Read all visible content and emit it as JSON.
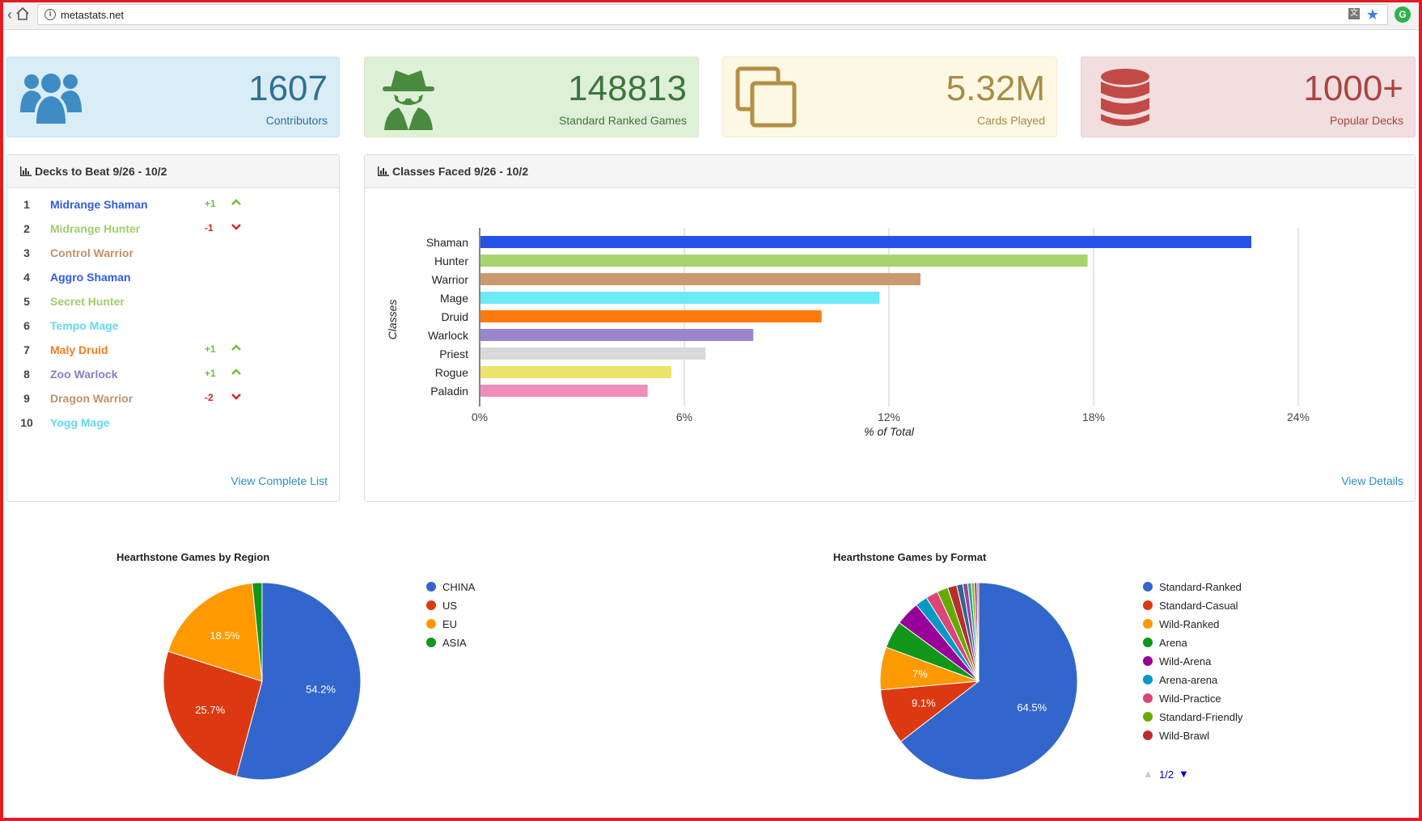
{
  "browser": {
    "url": "metastats.net"
  },
  "stats": [
    {
      "value": "1607",
      "label": "Contributors",
      "icon": "users-icon"
    },
    {
      "value": "148813",
      "label": "Standard Ranked Games",
      "icon": "spy-icon"
    },
    {
      "value": "5.32M",
      "label": "Cards Played",
      "icon": "copy-icon"
    },
    {
      "value": "1000+",
      "label": "Popular Decks",
      "icon": "database-icon"
    }
  ],
  "decks_panel": {
    "title": "Decks to Beat 9/26 - 10/2",
    "link": "View Complete List",
    "decks": [
      {
        "rank": "1",
        "name": "Midrange Shaman",
        "color": "#2e5ce6",
        "change": "+1",
        "dir": "up"
      },
      {
        "rank": "2",
        "name": "Midrange Hunter",
        "color": "#9dcf6c",
        "change": "-1",
        "dir": "down"
      },
      {
        "rank": "3",
        "name": "Control Warrior",
        "color": "#c0916a",
        "change": "",
        "dir": ""
      },
      {
        "rank": "4",
        "name": "Aggro Shaman",
        "color": "#2e5ce6",
        "change": "",
        "dir": ""
      },
      {
        "rank": "5",
        "name": "Secret Hunter",
        "color": "#9dcf6c",
        "change": "",
        "dir": ""
      },
      {
        "rank": "6",
        "name": "Tempo Mage",
        "color": "#63d8f0",
        "change": "",
        "dir": ""
      },
      {
        "rank": "7",
        "name": "Maly Druid",
        "color": "#f57c1f",
        "change": "+1",
        "dir": "up"
      },
      {
        "rank": "8",
        "name": "Zoo Warlock",
        "color": "#8c7cc2",
        "change": "+1",
        "dir": "up"
      },
      {
        "rank": "9",
        "name": "Dragon Warrior",
        "color": "#c0916a",
        "change": "-2",
        "dir": "down"
      },
      {
        "rank": "10",
        "name": "Yogg Mage",
        "color": "#63d8f0",
        "change": "",
        "dir": ""
      }
    ]
  },
  "classes_panel": {
    "title": "Classes Faced 9/26 - 10/2",
    "link": "View Details"
  },
  "chart_data": [
    {
      "type": "bar",
      "orientation": "horizontal",
      "categories": [
        "Shaman",
        "Hunter",
        "Warrior",
        "Mage",
        "Druid",
        "Warlock",
        "Priest",
        "Rogue",
        "Paladin"
      ],
      "values": [
        22.6,
        17.8,
        12.9,
        11.7,
        10.0,
        8.0,
        6.6,
        5.6,
        4.9
      ],
      "colors": [
        "#2553e8",
        "#a8d46e",
        "#c89a6e",
        "#6ceaf5",
        "#ff7a0a",
        "#9a86cf",
        "#d9d9d9",
        "#ece36a",
        "#f08dbd"
      ],
      "xlabel": "% of Total",
      "ylabel": "Classes",
      "xlim": [
        0,
        24
      ],
      "xticks": [
        "0%",
        "6%",
        "12%",
        "18%",
        "24%"
      ],
      "grid": true
    },
    {
      "type": "pie",
      "title": "Hearthstone Games by Region",
      "categories": [
        "CHINA",
        "US",
        "EU",
        "ASIA"
      ],
      "values": [
        54.2,
        25.7,
        18.5,
        1.6
      ],
      "labels": [
        "54.2%",
        "25.7%",
        "18.5%",
        ""
      ],
      "colors": [
        "#3366cc",
        "#dc3912",
        "#ff9900",
        "#109618"
      ],
      "legend": "right"
    },
    {
      "type": "pie",
      "title": "Hearthstone Games by Format",
      "categories": [
        "Standard-Ranked",
        "Standard-Casual",
        "Wild-Ranked",
        "Arena",
        "Wild-Arena",
        "Arena-arena",
        "Wild-Practice",
        "Standard-Friendly",
        "Wild-Brawl",
        "",
        "",
        "",
        "",
        "",
        ""
      ],
      "values": [
        64.5,
        9.1,
        7.0,
        4.5,
        4.0,
        2.0,
        2.0,
        1.8,
        1.5,
        1.0,
        0.8,
        0.6,
        0.5,
        0.4,
        0.3
      ],
      "labels": [
        "64.5%",
        "9.1%",
        "7%",
        "",
        "",
        "",
        "",
        "",
        "",
        "",
        "",
        "",
        "",
        "",
        ""
      ],
      "colors": [
        "#3366cc",
        "#dc3912",
        "#ff9900",
        "#109618",
        "#990099",
        "#0099c6",
        "#dd4477",
        "#66aa00",
        "#b82e2e",
        "#316395",
        "#994499",
        "#22aa99",
        "#aaaa11",
        "#6633cc",
        "#e67300"
      ],
      "legend": "right",
      "legend_page": "1/2"
    }
  ]
}
